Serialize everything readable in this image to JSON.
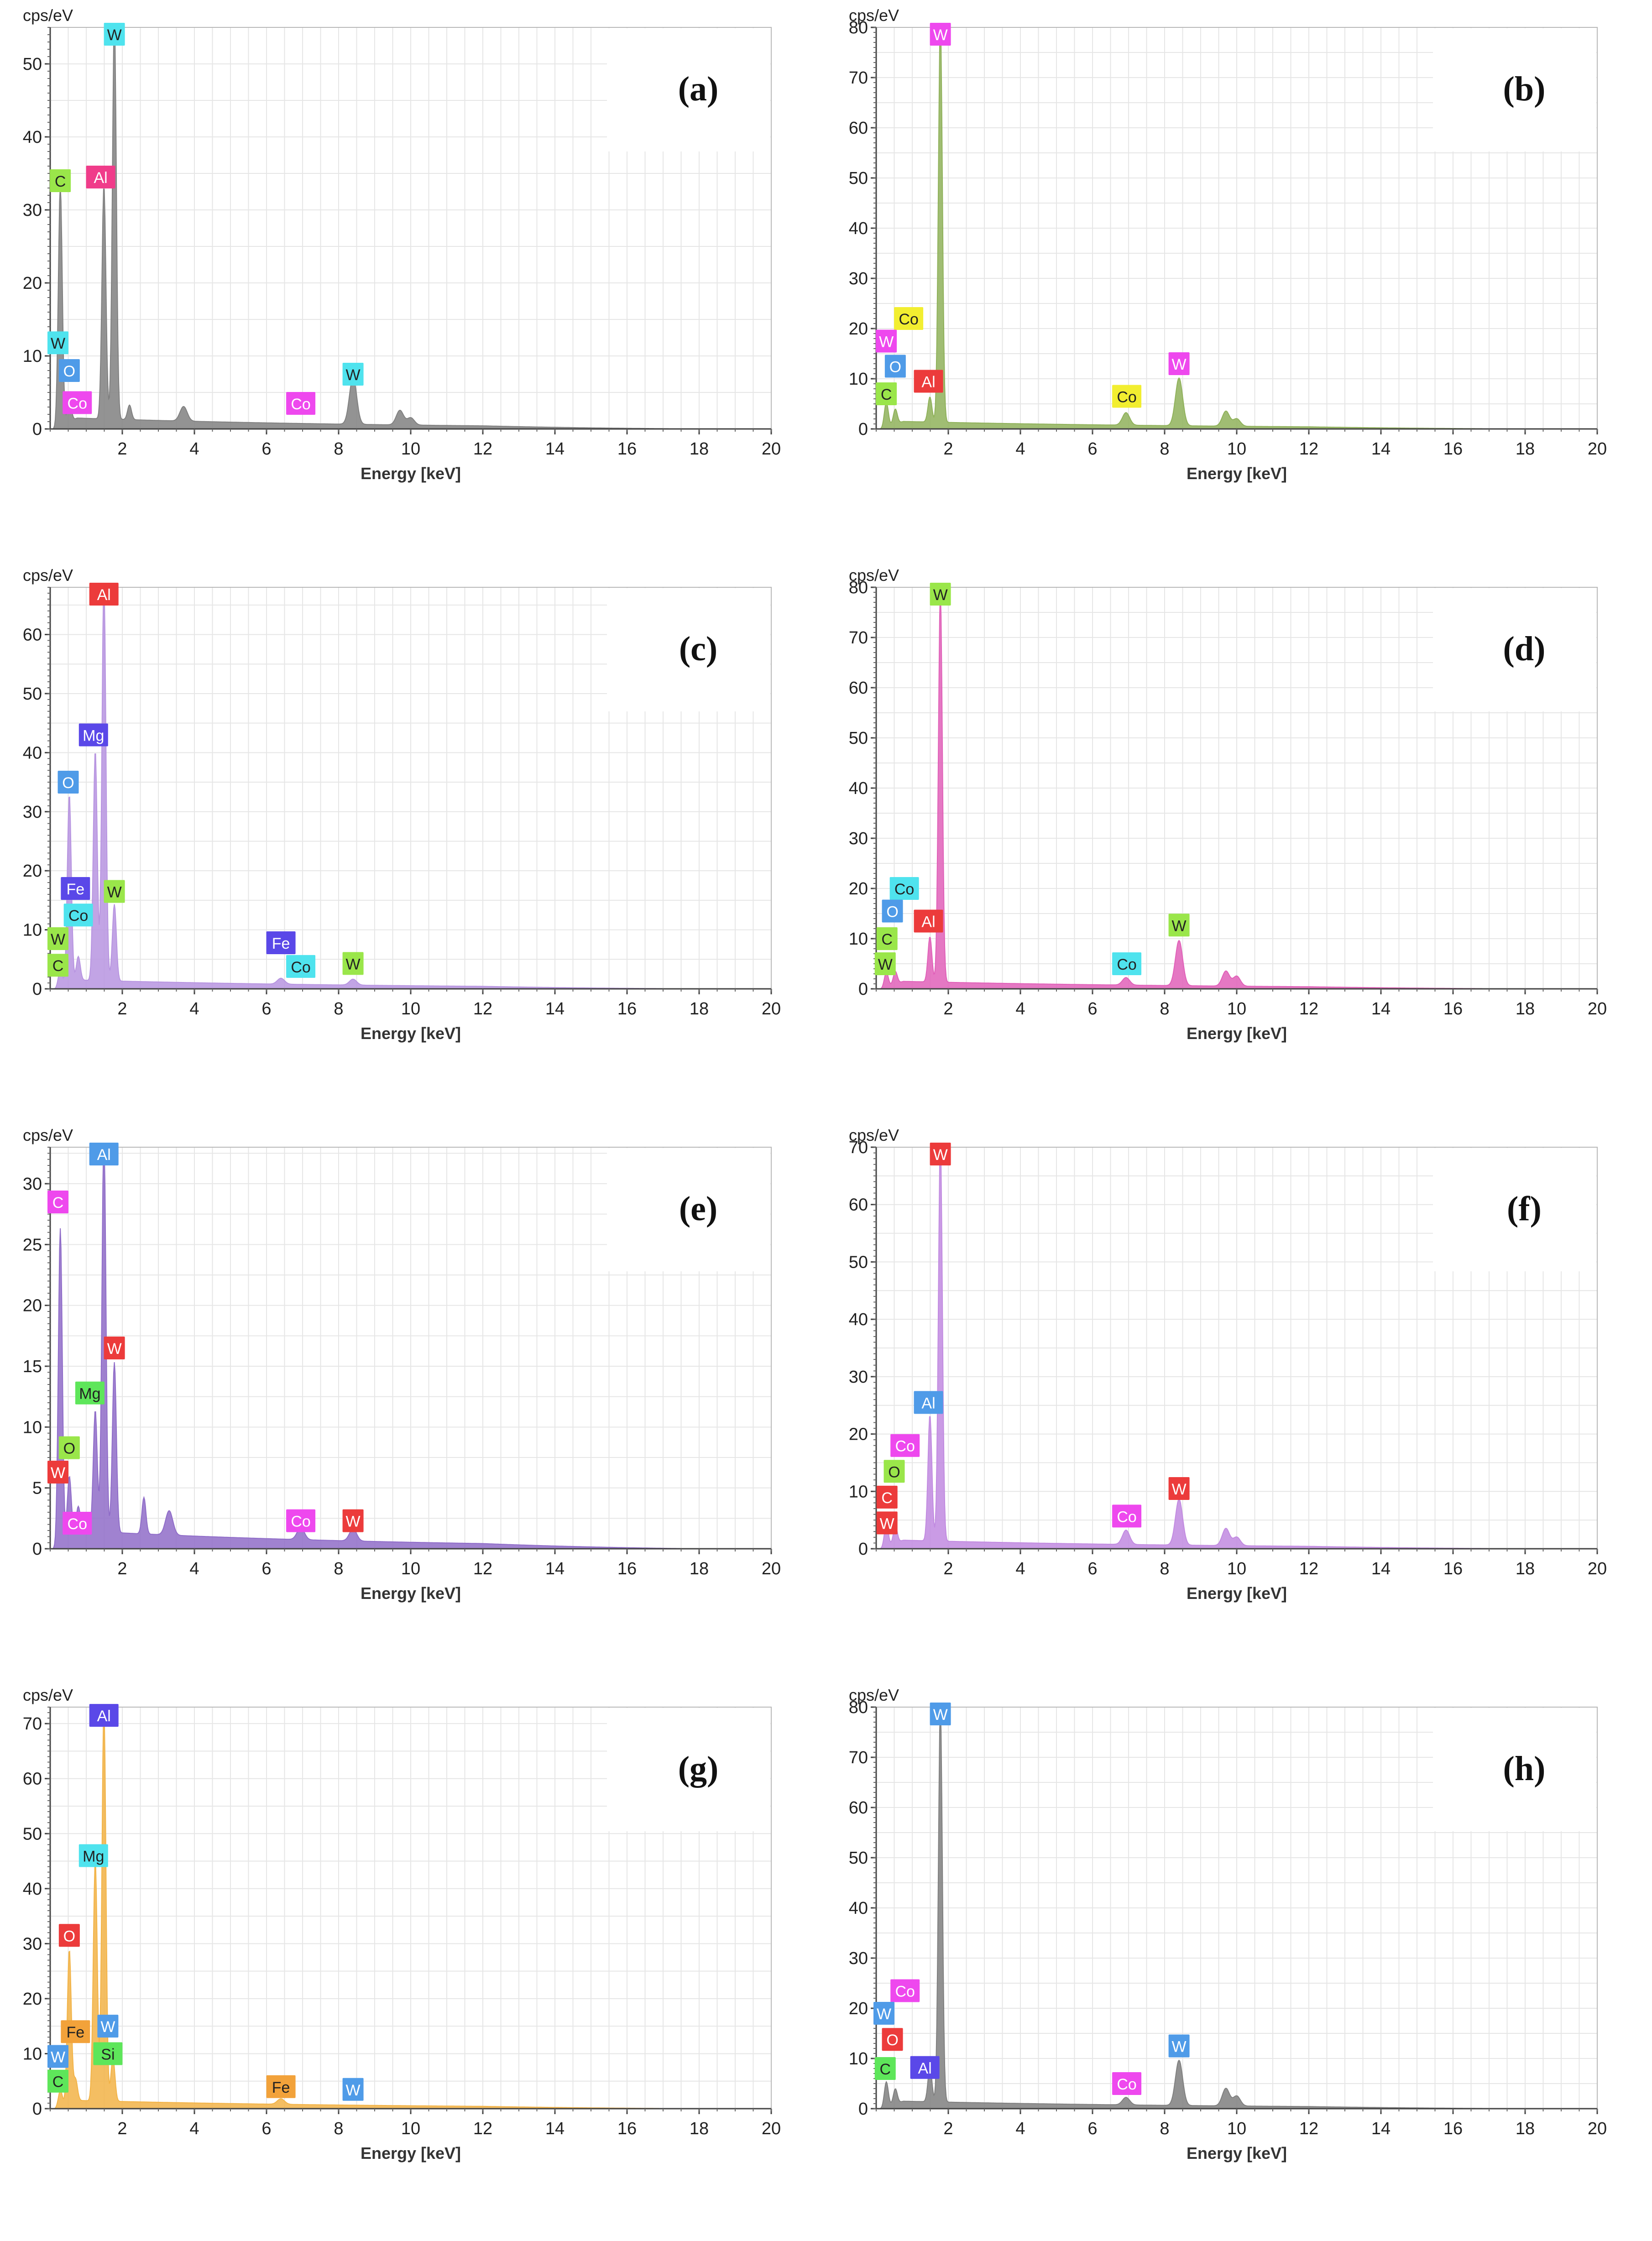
{
  "figure": {
    "panels": [
      {
        "id": "a",
        "letter": "(a)",
        "ymax": 55,
        "yticks": [
          0,
          10,
          20,
          30,
          40,
          50
        ],
        "color": "#808080"
      },
      {
        "id": "b",
        "letter": "(b)",
        "ymax": 80,
        "yticks": [
          0,
          10,
          20,
          30,
          40,
          50,
          60,
          70,
          80
        ],
        "color": "#8fb15a"
      },
      {
        "id": "c",
        "letter": "(c)",
        "ymax": 68,
        "yticks": [
          0,
          10,
          20,
          30,
          40,
          50,
          60
        ],
        "color": "#b794e0"
      },
      {
        "id": "d",
        "letter": "(d)",
        "ymax": 80,
        "yticks": [
          0,
          10,
          20,
          30,
          40,
          50,
          60,
          70,
          80
        ],
        "color": "#e060b8"
      },
      {
        "id": "e",
        "letter": "(e)",
        "ymax": 33,
        "yticks": [
          0,
          5,
          10,
          15,
          20,
          25,
          30
        ],
        "color": "#8f6cc8"
      },
      {
        "id": "f",
        "letter": "(f)",
        "ymax": 70,
        "yticks": [
          0,
          10,
          20,
          30,
          40,
          50,
          60,
          70
        ],
        "color": "#c18ae0"
      },
      {
        "id": "g",
        "letter": "(g)",
        "ymax": 73,
        "yticks": [
          0,
          10,
          20,
          30,
          40,
          50,
          60,
          70
        ],
        "color": "#f2b347"
      },
      {
        "id": "h",
        "letter": "(h)",
        "ymax": 80,
        "yticks": [
          0,
          10,
          20,
          30,
          40,
          50,
          60,
          70,
          80
        ],
        "color": "#7f7f7f"
      }
    ]
  },
  "chart_data": [
    {
      "type": "area",
      "panel": "(a)",
      "ylabel": "cps/eV",
      "xlabel": "Energy [keV]",
      "xlim": [
        0,
        20
      ],
      "ylim": [
        0,
        55
      ],
      "xticks": [
        2,
        4,
        6,
        8,
        10,
        12,
        14,
        16,
        18,
        20
      ],
      "yticks": [
        0,
        10,
        20,
        30,
        40,
        50
      ],
      "peaks": [
        [
          0.28,
          33
        ],
        [
          0.53,
          3
        ],
        [
          1.49,
          32
        ],
        [
          1.78,
          55
        ],
        [
          2.2,
          2
        ],
        [
          3.7,
          2
        ],
        [
          8.4,
          6.5
        ],
        [
          9.7,
          2
        ],
        [
          10.0,
          1
        ]
      ],
      "annotations": [
        {
          "label": "W",
          "x": 1.78,
          "y": 56,
          "color": "#4fe3ee"
        },
        {
          "label": "C",
          "x": 0.28,
          "y": 34,
          "color": "#9ae64a"
        },
        {
          "label": "Al",
          "x": 1.4,
          "y": 34.5,
          "color": "#f03c8a"
        },
        {
          "label": "W",
          "x": 0.2,
          "y": 11.8,
          "color": "#4fe3ee"
        },
        {
          "label": "O",
          "x": 0.53,
          "y": 8,
          "color": "#4f9be8"
        },
        {
          "label": "Co",
          "x": 0.75,
          "y": 3.6,
          "color": "#ee48ee"
        },
        {
          "label": "Co",
          "x": 6.95,
          "y": 3.5,
          "color": "#ee48ee"
        },
        {
          "label": "W",
          "x": 8.4,
          "y": 7.5,
          "color": "#4fe3ee"
        }
      ]
    },
    {
      "type": "area",
      "panel": "(b)",
      "ylabel": "cps/eV",
      "xlabel": "Energy [keV]",
      "xlim": [
        0,
        20
      ],
      "ylim": [
        0,
        80
      ],
      "xticks": [
        2,
        4,
        6,
        8,
        10,
        12,
        14,
        16,
        18,
        20
      ],
      "yticks": [
        0,
        10,
        20,
        30,
        40,
        50,
        60,
        70,
        80
      ],
      "peaks": [
        [
          0.28,
          5
        ],
        [
          0.53,
          3
        ],
        [
          1.49,
          5
        ],
        [
          1.78,
          80
        ],
        [
          6.93,
          2.5
        ],
        [
          8.4,
          9.5
        ],
        [
          9.7,
          3
        ],
        [
          10.0,
          1.5
        ]
      ],
      "annotations": [
        {
          "label": "W",
          "x": 1.78,
          "y": 81,
          "color": "#ee48ee"
        },
        {
          "label": "Co",
          "x": 0.9,
          "y": 22,
          "color": "#f2ee30"
        },
        {
          "label": "W",
          "x": 0.28,
          "y": 17.5,
          "color": "#ee48ee"
        },
        {
          "label": "O",
          "x": 0.53,
          "y": 12.5,
          "color": "#4f9be8"
        },
        {
          "label": "Al",
          "x": 1.45,
          "y": 9.5,
          "color": "#ec3b3b"
        },
        {
          "label": "C",
          "x": 0.28,
          "y": 7,
          "color": "#9ae64a"
        },
        {
          "label": "Co",
          "x": 6.95,
          "y": 6.5,
          "color": "#f2ee30"
        },
        {
          "label": "W",
          "x": 8.4,
          "y": 13,
          "color": "#ee48ee"
        }
      ]
    },
    {
      "type": "area",
      "panel": "(c)",
      "ylabel": "cps/eV",
      "xlabel": "Energy [keV]",
      "xlim": [
        0,
        20
      ],
      "ylim": [
        0,
        68
      ],
      "xticks": [
        2,
        4,
        6,
        8,
        10,
        12,
        14,
        16,
        18,
        20
      ],
      "yticks": [
        0,
        10,
        20,
        30,
        40,
        50,
        60
      ],
      "peaks": [
        [
          0.28,
          3
        ],
        [
          0.53,
          32
        ],
        [
          0.78,
          4
        ],
        [
          1.25,
          39
        ],
        [
          1.49,
          68
        ],
        [
          1.78,
          13
        ],
        [
          6.4,
          1
        ],
        [
          8.4,
          1
        ]
      ],
      "annotations": [
        {
          "label": "Al",
          "x": 1.49,
          "y": 68.5,
          "color": "#ec3b3b"
        },
        {
          "label": "Mg",
          "x": 1.2,
          "y": 43,
          "color": "#5a48e8"
        },
        {
          "label": "O",
          "x": 0.5,
          "y": 35,
          "color": "#4f9be8"
        },
        {
          "label": "Fe",
          "x": 0.7,
          "y": 17,
          "color": "#5a48e8"
        },
        {
          "label": "W",
          "x": 1.78,
          "y": 16.5,
          "color": "#9ae64a"
        },
        {
          "label": "Co",
          "x": 0.78,
          "y": 12.5,
          "color": "#4fe3ee"
        },
        {
          "label": "W",
          "x": 0.15,
          "y": 8.5,
          "color": "#9ae64a"
        },
        {
          "label": "C",
          "x": 0.15,
          "y": 4,
          "color": "#9ae64a"
        },
        {
          "label": "Fe",
          "x": 6.4,
          "y": 7.8,
          "color": "#5a48e8"
        },
        {
          "label": "Co",
          "x": 6.95,
          "y": 3.8,
          "color": "#4fe3ee"
        },
        {
          "label": "W",
          "x": 8.4,
          "y": 4.3,
          "color": "#9ae64a"
        }
      ]
    },
    {
      "type": "area",
      "panel": "(d)",
      "ylabel": "cps/eV",
      "xlabel": "Energy [keV]",
      "xlim": [
        0,
        20
      ],
      "ylim": [
        0,
        80
      ],
      "xticks": [
        2,
        4,
        6,
        8,
        10,
        12,
        14,
        16,
        18,
        20
      ],
      "yticks": [
        0,
        10,
        20,
        30,
        40,
        50,
        60,
        70,
        80
      ],
      "peaks": [
        [
          0.28,
          3
        ],
        [
          0.53,
          2.5
        ],
        [
          1.49,
          9
        ],
        [
          1.78,
          78
        ],
        [
          6.93,
          1.5
        ],
        [
          8.4,
          9
        ],
        [
          9.7,
          3
        ],
        [
          10.0,
          2
        ]
      ],
      "annotations": [
        {
          "label": "W",
          "x": 1.78,
          "y": 80.5,
          "color": "#9ae64a"
        },
        {
          "label": "Co",
          "x": 0.78,
          "y": 20,
          "color": "#4fe3ee"
        },
        {
          "label": "O",
          "x": 0.45,
          "y": 15.5,
          "color": "#4f9be8"
        },
        {
          "label": "Al",
          "x": 1.45,
          "y": 13.5,
          "color": "#ec3b3b"
        },
        {
          "label": "C",
          "x": 0.3,
          "y": 10,
          "color": "#9ae64a"
        },
        {
          "label": "W",
          "x": 0.25,
          "y": 5,
          "color": "#9ae64a"
        },
        {
          "label": "Co",
          "x": 6.95,
          "y": 5,
          "color": "#4fe3ee"
        },
        {
          "label": "W",
          "x": 8.4,
          "y": 12.7,
          "color": "#9ae64a"
        }
      ]
    },
    {
      "type": "area",
      "panel": "(e)",
      "ylabel": "cps/eV",
      "xlabel": "Energy [keV]",
      "xlim": [
        0,
        20
      ],
      "ylim": [
        0,
        33
      ],
      "xticks": [
        2,
        4,
        6,
        8,
        10,
        12,
        14,
        16,
        18,
        20
      ],
      "yticks": [
        0,
        5,
        10,
        15,
        20,
        25,
        30
      ],
      "peaks": [
        [
          0.28,
          26
        ],
        [
          0.53,
          5
        ],
        [
          0.78,
          2
        ],
        [
          1.25,
          10
        ],
        [
          1.49,
          33
        ],
        [
          1.78,
          14
        ],
        [
          2.6,
          3
        ],
        [
          3.3,
          2
        ],
        [
          6.95,
          1
        ],
        [
          8.4,
          1
        ]
      ],
      "annotations": [
        {
          "label": "Al",
          "x": 1.49,
          "y": 33.5,
          "color": "#4f9be8"
        },
        {
          "label": "C",
          "x": 0.2,
          "y": 28.5,
          "color": "#ee48ee"
        },
        {
          "label": "W",
          "x": 1.78,
          "y": 16.5,
          "color": "#ec3b3b"
        },
        {
          "label": "Mg",
          "x": 1.1,
          "y": 12.8,
          "color": "#5ee65a"
        },
        {
          "label": "O",
          "x": 0.53,
          "y": 8.3,
          "color": "#9ae64a"
        },
        {
          "label": "W",
          "x": 0.15,
          "y": 6.3,
          "color": "#ec3b3b"
        },
        {
          "label": "Co",
          "x": 0.75,
          "y": 2.1,
          "color": "#ee48ee"
        },
        {
          "label": "Co",
          "x": 6.95,
          "y": 2.3,
          "color": "#ee48ee"
        },
        {
          "label": "W",
          "x": 8.4,
          "y": 2.3,
          "color": "#ec3b3b"
        }
      ]
    },
    {
      "type": "area",
      "panel": "(f)",
      "ylabel": "cps/eV",
      "xlabel": "Energy [keV]",
      "xlim": [
        0,
        20
      ],
      "ylim": [
        0,
        70
      ],
      "xticks": [
        2,
        4,
        6,
        8,
        10,
        12,
        14,
        16,
        18,
        20
      ],
      "yticks": [
        0,
        10,
        20,
        30,
        40,
        50,
        60,
        70
      ],
      "peaks": [
        [
          0.28,
          4
        ],
        [
          0.53,
          3
        ],
        [
          1.49,
          22
        ],
        [
          1.78,
          70
        ],
        [
          6.93,
          2.5
        ],
        [
          8.4,
          8
        ],
        [
          9.7,
          3
        ],
        [
          10.0,
          1.5
        ]
      ],
      "annotations": [
        {
          "label": "W",
          "x": 1.78,
          "y": 71,
          "color": "#ec3b3b"
        },
        {
          "label": "Al",
          "x": 1.45,
          "y": 25.5,
          "color": "#4f9be8"
        },
        {
          "label": "Co",
          "x": 0.8,
          "y": 18,
          "color": "#ee48ee"
        },
        {
          "label": "O",
          "x": 0.5,
          "y": 13.5,
          "color": "#9ae64a"
        },
        {
          "label": "C",
          "x": 0.3,
          "y": 9,
          "color": "#ec3b3b"
        },
        {
          "label": "W",
          "x": 0.3,
          "y": 4.5,
          "color": "#ec3b3b"
        },
        {
          "label": "Co",
          "x": 6.95,
          "y": 5.7,
          "color": "#ee48ee"
        },
        {
          "label": "W",
          "x": 8.4,
          "y": 10.5,
          "color": "#ec3b3b"
        }
      ]
    },
    {
      "type": "area",
      "panel": "(g)",
      "ylabel": "cps/eV",
      "xlabel": "Energy [keV]",
      "xlim": [
        0,
        20
      ],
      "ylim": [
        0,
        73
      ],
      "xticks": [
        2,
        4,
        6,
        8,
        10,
        12,
        14,
        16,
        18,
        20
      ],
      "yticks": [
        0,
        10,
        20,
        30,
        40,
        50,
        60,
        70
      ],
      "peaks": [
        [
          0.28,
          3
        ],
        [
          0.53,
          28
        ],
        [
          0.7,
          4
        ],
        [
          1.25,
          44
        ],
        [
          1.49,
          72
        ],
        [
          1.74,
          8
        ],
        [
          6.4,
          1
        ]
      ],
      "annotations": [
        {
          "label": "Al",
          "x": 1.49,
          "y": 71.5,
          "color": "#5a48e8"
        },
        {
          "label": "Mg",
          "x": 1.2,
          "y": 46,
          "color": "#4fe3ee"
        },
        {
          "label": "O",
          "x": 0.53,
          "y": 31.5,
          "color": "#ec3b3b"
        },
        {
          "label": "Fe",
          "x": 0.7,
          "y": 14,
          "color": "#f2a23a"
        },
        {
          "label": "W",
          "x": 1.6,
          "y": 15,
          "color": "#4f9be8"
        },
        {
          "label": "Si",
          "x": 1.6,
          "y": 10,
          "color": "#5ee65a"
        },
        {
          "label": "W",
          "x": 0.12,
          "y": 9.5,
          "color": "#4f9be8"
        },
        {
          "label": "C",
          "x": 0.18,
          "y": 5,
          "color": "#5ee65a"
        },
        {
          "label": "Fe",
          "x": 6.4,
          "y": 4,
          "color": "#f2a23a"
        },
        {
          "label": "W",
          "x": 8.4,
          "y": 3.5,
          "color": "#4f9be8"
        }
      ]
    },
    {
      "type": "area",
      "panel": "(h)",
      "ylabel": "cps/eV",
      "xlabel": "Energy [keV]",
      "xlim": [
        0,
        20
      ],
      "ylim": [
        0,
        80
      ],
      "xticks": [
        2,
        4,
        6,
        8,
        10,
        12,
        14,
        16,
        18,
        20
      ],
      "yticks": [
        0,
        10,
        20,
        30,
        40,
        50,
        60,
        70,
        80
      ],
      "peaks": [
        [
          0.28,
          5
        ],
        [
          0.53,
          3
        ],
        [
          1.49,
          7
        ],
        [
          1.78,
          79
        ],
        [
          6.93,
          1.5
        ],
        [
          8.4,
          9
        ],
        [
          9.7,
          3.5
        ],
        [
          10.0,
          2
        ]
      ],
      "annotations": [
        {
          "label": "W",
          "x": 1.78,
          "y": 80.5,
          "color": "#4f9be8"
        },
        {
          "label": "Co",
          "x": 0.8,
          "y": 23.5,
          "color": "#ee48ee"
        },
        {
          "label": "W",
          "x": 0.2,
          "y": 19,
          "color": "#4f9be8"
        },
        {
          "label": "O",
          "x": 0.45,
          "y": 13.8,
          "color": "#ec3b3b"
        },
        {
          "label": "C",
          "x": 0.25,
          "y": 8,
          "color": "#5ee65a"
        },
        {
          "label": "Al",
          "x": 1.35,
          "y": 8.2,
          "color": "#5a48e8"
        },
        {
          "label": "Co",
          "x": 6.95,
          "y": 5,
          "color": "#ee48ee"
        },
        {
          "label": "W",
          "x": 8.4,
          "y": 12.5,
          "color": "#4f9be8"
        }
      ]
    }
  ]
}
